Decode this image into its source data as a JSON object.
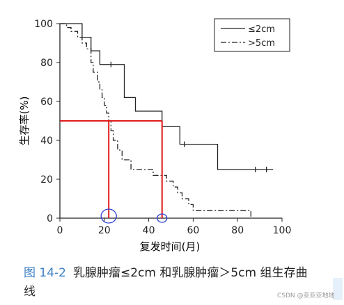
{
  "chart_data": {
    "type": "line",
    "ylabel": "生存率(%)",
    "xlabel": "复发时间(月)",
    "xlim": [
      0,
      100
    ],
    "ylim": [
      0,
      100
    ],
    "xticks": [
      "0",
      "20",
      "40",
      "60",
      "80",
      "100"
    ],
    "yticks": [
      "0",
      "20",
      "40",
      "60",
      "80",
      "100"
    ],
    "legend_position": "top-right",
    "grid": false,
    "series": [
      {
        "name": "≤2cm",
        "style": "solid",
        "step": [
          [
            0,
            100
          ],
          [
            10,
            100
          ],
          [
            10,
            93
          ],
          [
            14,
            93
          ],
          [
            14,
            86
          ],
          [
            18,
            86
          ],
          [
            18,
            79
          ],
          [
            29,
            79
          ],
          [
            29,
            62
          ],
          [
            34,
            62
          ],
          [
            34,
            55
          ],
          [
            46,
            55
          ],
          [
            46,
            47
          ],
          [
            54,
            47
          ],
          [
            54,
            38
          ],
          [
            71,
            38
          ],
          [
            71,
            25
          ],
          [
            96,
            25
          ]
        ],
        "censor_x": [
          23,
          56,
          88,
          93
        ]
      },
      {
        "name": ">5cm",
        "style": "dash-dot",
        "step": [
          [
            0,
            100
          ],
          [
            3,
            100
          ],
          [
            3,
            98
          ],
          [
            5,
            98
          ],
          [
            5,
            96
          ],
          [
            8,
            96
          ],
          [
            8,
            93
          ],
          [
            10,
            93
          ],
          [
            10,
            90
          ],
          [
            12,
            90
          ],
          [
            12,
            87
          ],
          [
            14,
            87
          ],
          [
            14,
            80
          ],
          [
            15,
            80
          ],
          [
            15,
            75
          ],
          [
            17,
            75
          ],
          [
            17,
            70
          ],
          [
            18,
            70
          ],
          [
            18,
            66
          ],
          [
            19,
            66
          ],
          [
            19,
            62
          ],
          [
            20,
            62
          ],
          [
            20,
            58
          ],
          [
            21,
            58
          ],
          [
            21,
            54
          ],
          [
            22,
            54
          ],
          [
            22,
            50
          ],
          [
            23,
            50
          ],
          [
            23,
            45
          ],
          [
            24,
            45
          ],
          [
            24,
            40
          ],
          [
            26,
            40
          ],
          [
            26,
            35
          ],
          [
            28,
            35
          ],
          [
            28,
            30
          ],
          [
            32,
            30
          ],
          [
            32,
            25
          ],
          [
            42,
            25
          ],
          [
            42,
            22
          ],
          [
            48,
            22
          ],
          [
            48,
            19
          ],
          [
            51,
            19
          ],
          [
            51,
            16
          ],
          [
            53,
            16
          ],
          [
            53,
            13
          ],
          [
            55,
            13
          ],
          [
            55,
            10
          ],
          [
            58,
            10
          ],
          [
            58,
            7
          ],
          [
            60,
            7
          ],
          [
            60,
            4
          ],
          [
            86,
            4
          ],
          [
            86,
            1
          ],
          [
            87,
            1
          ]
        ]
      }
    ],
    "annotations": {
      "reference_y": 50,
      "reference_x": [
        22,
        46
      ],
      "highlight_x": [
        22,
        46
      ],
      "colors": {
        "reference": "#e01b1b",
        "highlight": "#2c3fd1"
      }
    }
  },
  "caption": {
    "figure_no": "图 14-2",
    "text": "乳腺肿瘤≤2cm 和乳腺肿瘤＞5cm 组生存曲线"
  },
  "watermark": "CSDN @亚亚亚地地"
}
